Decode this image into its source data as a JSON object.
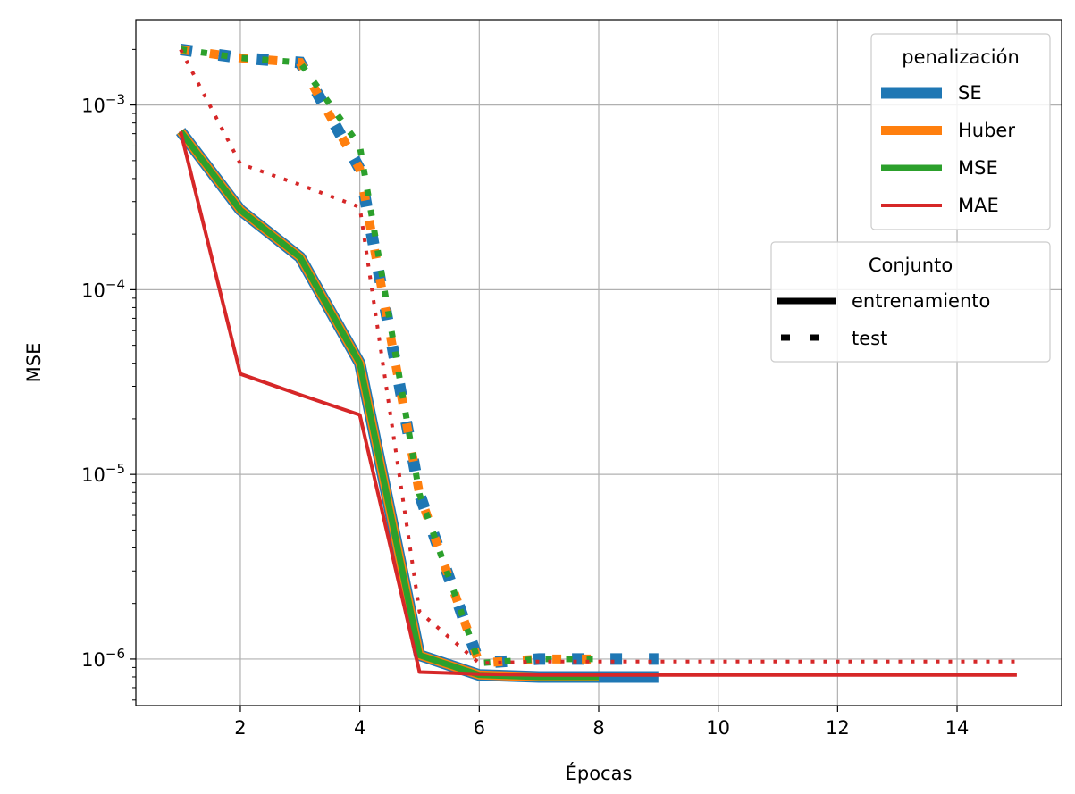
{
  "chart_data": {
    "type": "line",
    "title": "",
    "xlabel": "Épocas",
    "ylabel": "MSE",
    "yscale": "log",
    "xlim": [
      0.25,
      15.75
    ],
    "ylim": [
      5.6e-07,
      0.0029
    ],
    "grid": true,
    "xticks": [
      {
        "value": 2,
        "label": "2"
      },
      {
        "value": 4,
        "label": "4"
      },
      {
        "value": 6,
        "label": "6"
      },
      {
        "value": 8,
        "label": "8"
      },
      {
        "value": 10,
        "label": "10"
      },
      {
        "value": 12,
        "label": "12"
      },
      {
        "value": 14,
        "label": "14"
      }
    ],
    "yticks": [
      {
        "value": 1e-06,
        "base": "10",
        "exp": "−6"
      },
      {
        "value": 1e-05,
        "base": "10",
        "exp": "−5"
      },
      {
        "value": 0.0001,
        "base": "10",
        "exp": "−4"
      },
      {
        "value": 0.001,
        "base": "10",
        "exp": "−3"
      }
    ],
    "legend_penalty": {
      "title": "penalización",
      "placement": "upper right",
      "entries": [
        {
          "name": "SE",
          "color": "#1f77b4"
        },
        {
          "name": "Huber",
          "color": "#ff7f0e"
        },
        {
          "name": "MSE",
          "color": "#2ca02c"
        },
        {
          "name": "MAE",
          "color": "#d62728"
        }
      ]
    },
    "legend_set": {
      "title": "Conjunto",
      "placement": "right",
      "entries": [
        {
          "name": "entrenamiento",
          "style": "solid"
        },
        {
          "name": "test",
          "style": "dotted"
        }
      ]
    },
    "series": [
      {
        "name": "SE",
        "set": "entrenamiento",
        "color": "#1f77b4",
        "x": [
          1,
          2,
          3,
          4,
          5,
          6,
          7,
          8,
          9
        ],
        "y": [
          0.00072,
          0.00027,
          0.00015,
          4e-05,
          1.05e-06,
          8.2e-07,
          8e-07,
          8e-07,
          8e-07
        ]
      },
      {
        "name": "Huber",
        "set": "entrenamiento",
        "color": "#ff7f0e",
        "x": [
          1,
          2,
          3,
          4,
          5,
          6,
          7,
          8
        ],
        "y": [
          0.00072,
          0.00027,
          0.00015,
          4e-05,
          1.05e-06,
          8.2e-07,
          8e-07,
          8e-07
        ]
      },
      {
        "name": "MSE",
        "set": "entrenamiento",
        "color": "#2ca02c",
        "x": [
          1,
          2,
          3,
          4,
          5,
          6,
          7,
          8
        ],
        "y": [
          0.00072,
          0.00027,
          0.00015,
          4e-05,
          1.05e-06,
          8.2e-07,
          8e-07,
          8e-07
        ]
      },
      {
        "name": "MAE",
        "set": "entrenamiento",
        "color": "#d62728",
        "x": [
          1,
          2,
          3,
          4,
          5,
          6,
          7,
          8,
          9,
          10,
          11,
          12,
          13,
          14,
          15
        ],
        "y": [
          0.00072,
          3.5e-05,
          2.7e-05,
          2.1e-05,
          8.5e-07,
          8.3e-07,
          8.2e-07,
          8.2e-07,
          8.2e-07,
          8.2e-07,
          8.2e-07,
          8.2e-07,
          8.2e-07,
          8.2e-07,
          8.2e-07
        ]
      },
      {
        "name": "SE",
        "set": "test",
        "color": "#1f77b4",
        "x": [
          1,
          2,
          3,
          4,
          5,
          6,
          7,
          8,
          9
        ],
        "y": [
          0.002,
          0.0018,
          0.0017,
          0.00045,
          7.8e-06,
          9.5e-07,
          1e-06,
          1e-06,
          1e-06
        ]
      },
      {
        "name": "Huber",
        "set": "test",
        "color": "#ff7f0e",
        "x": [
          1,
          2,
          3,
          4,
          5,
          6,
          7,
          8
        ],
        "y": [
          0.002,
          0.0018,
          0.0017,
          0.00045,
          7.8e-06,
          9.5e-07,
          1e-06,
          1e-06
        ]
      },
      {
        "name": "MSE",
        "set": "test",
        "color": "#2ca02c",
        "x": [
          1,
          2,
          3,
          4,
          5,
          6,
          7,
          8
        ],
        "y": [
          0.002,
          0.0018,
          0.0017,
          0.0006,
          7.8e-06,
          9.5e-07,
          1e-06,
          1e-06
        ]
      },
      {
        "name": "MAE",
        "set": "test",
        "color": "#d62728",
        "x": [
          1,
          2,
          3,
          4,
          5,
          6,
          7,
          8,
          9,
          10,
          11,
          12,
          13,
          14,
          15
        ],
        "y": [
          0.002,
          0.00048,
          0.00037,
          0.00028,
          1.8e-06,
          9.5e-07,
          9.7e-07,
          9.7e-07,
          9.7e-07,
          9.7e-07,
          9.7e-07,
          9.7e-07,
          9.7e-07,
          9.7e-07,
          9.7e-07
        ]
      }
    ]
  }
}
